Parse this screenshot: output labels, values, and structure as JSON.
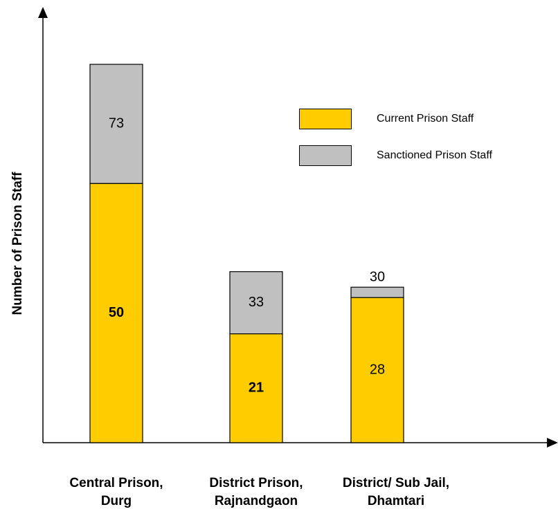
{
  "chart_data": {
    "type": "bar",
    "stacked": true,
    "title": "",
    "xlabel": "",
    "ylabel": "Number of Prison Staff",
    "ylim": [
      0,
      73
    ],
    "grid": false,
    "legend_position": "top-right",
    "categories": [
      [
        "Central Prison,",
        "Durg"
      ],
      [
        "District Prison,",
        "Rajnandgaon"
      ],
      [
        "District/ Sub Jail,",
        "Dhamtari"
      ]
    ],
    "series": [
      {
        "name": "Current Prison Staff",
        "color": "#FFCC00",
        "values": [
          50,
          21,
          28
        ],
        "labels_bold": [
          true,
          true,
          false
        ]
      },
      {
        "name": "Sanctioned Prison Staff",
        "color": "#C0C0C0",
        "totals": [
          73,
          33,
          30
        ]
      }
    ]
  }
}
